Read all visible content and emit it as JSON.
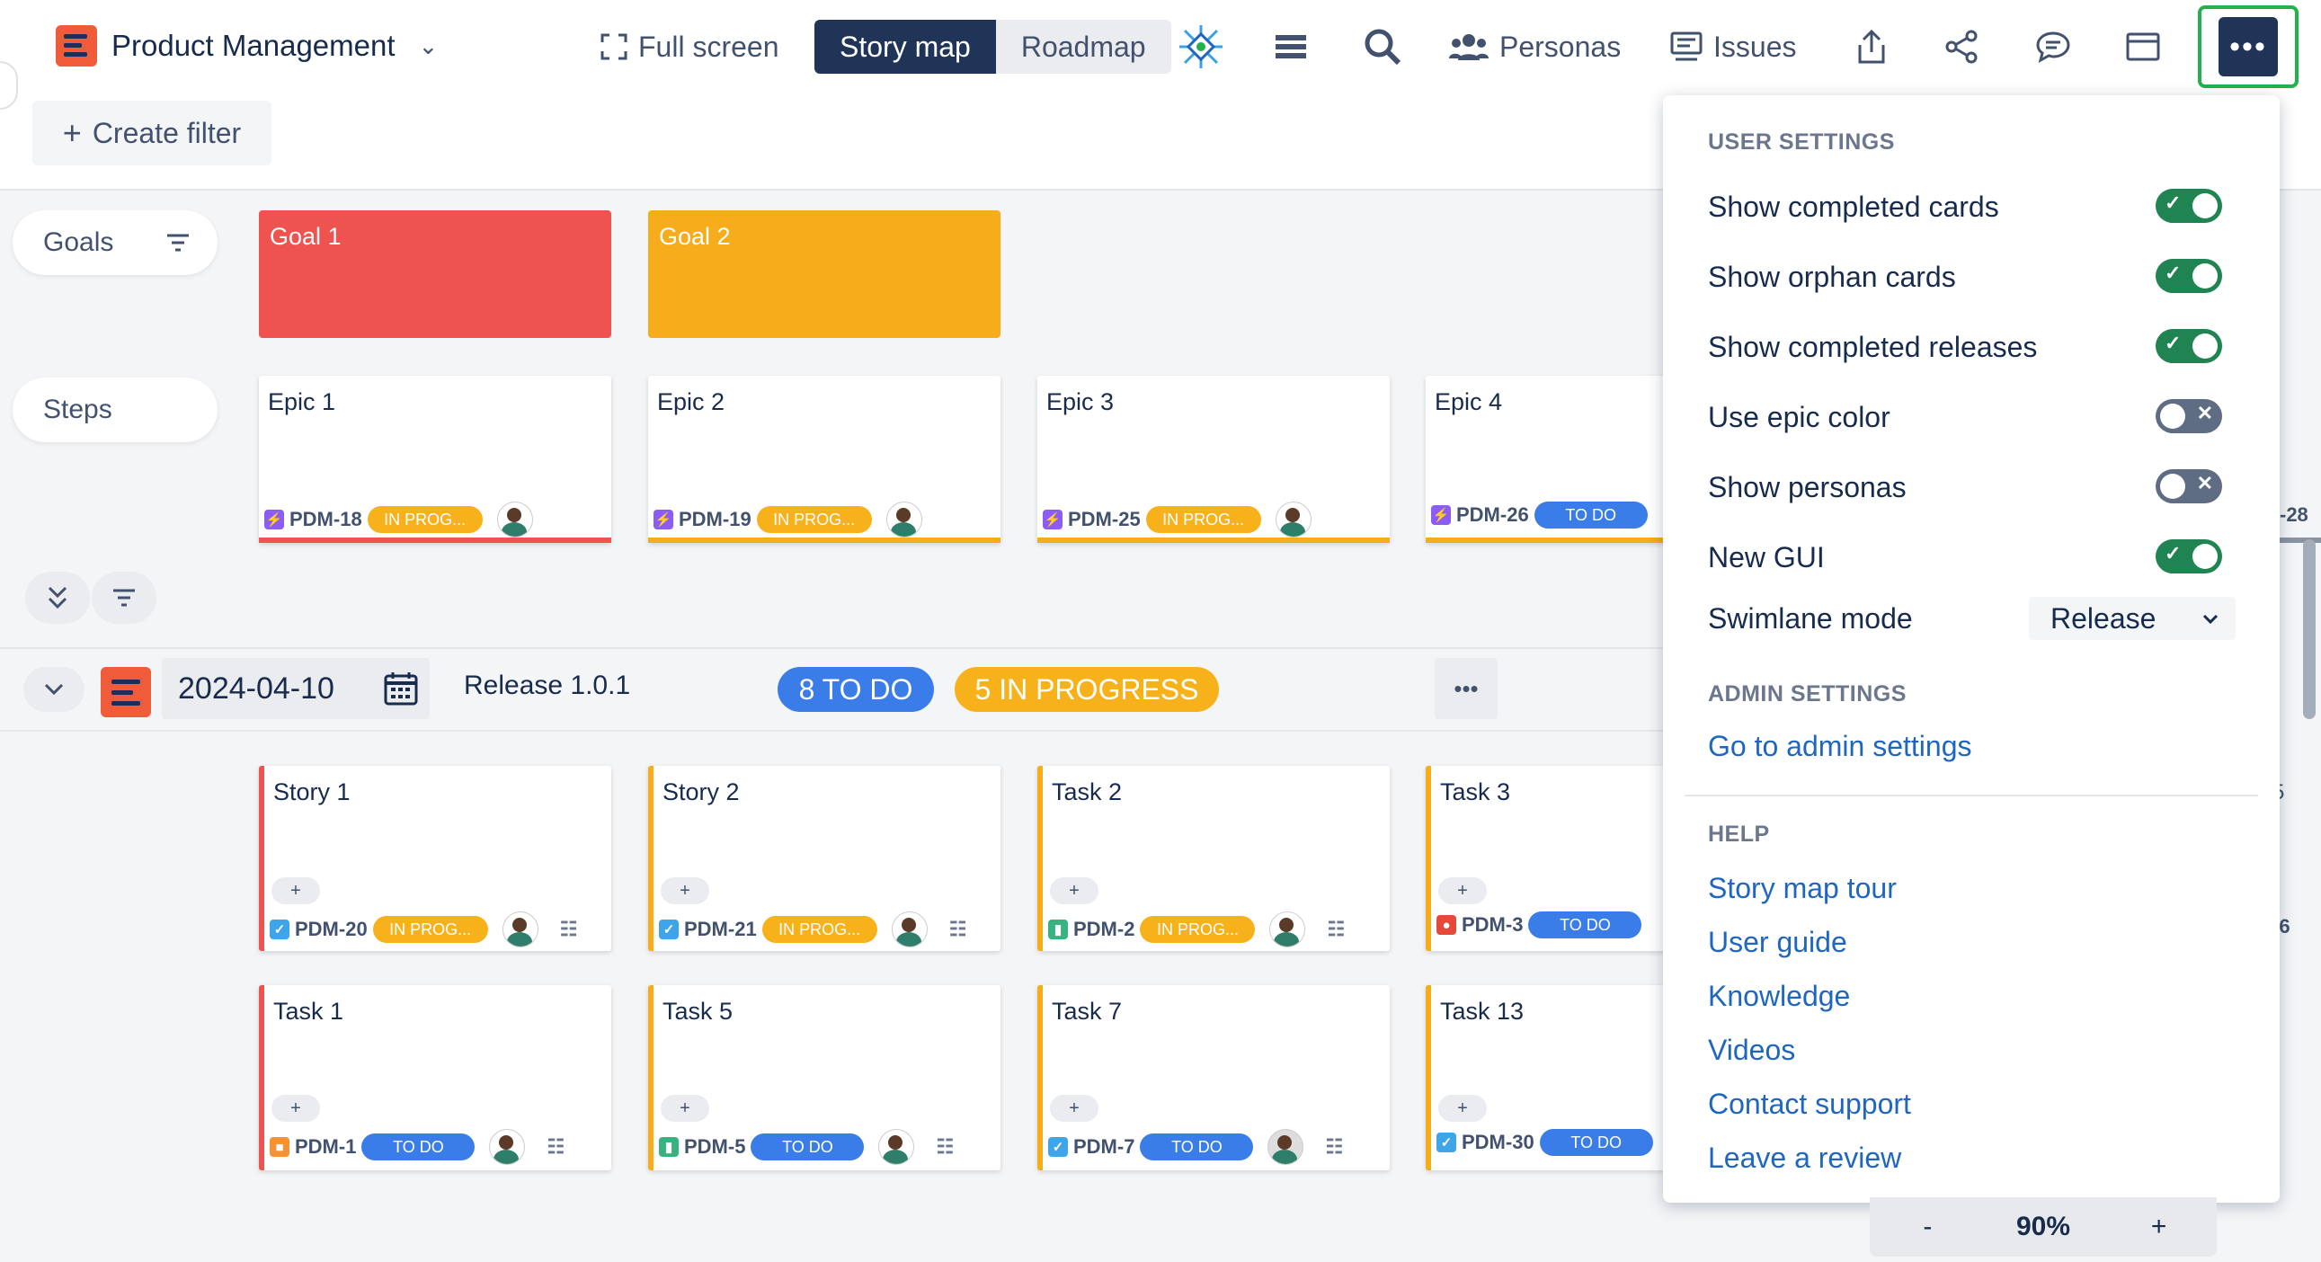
{
  "header": {
    "project_name": "Product Management",
    "fullscreen_label": "Full screen",
    "view_tabs": [
      "Story map",
      "Roadmap"
    ],
    "personas_label": "Personas",
    "issues_label": "Issues",
    "create_filter_label": "Create filter"
  },
  "rows": {
    "goals_label": "Goals",
    "steps_label": "Steps"
  },
  "goals": [
    {
      "title": "Goal 1",
      "color": "#ef5350"
    },
    {
      "title": "Goal 2",
      "color": "#f7ac1b"
    }
  ],
  "epics": [
    {
      "title": "Epic 1",
      "key": "PDM-18",
      "status": "IN PROG...",
      "bar": "#ef5350"
    },
    {
      "title": "Epic 2",
      "key": "PDM-19",
      "status": "IN PROG...",
      "bar": "#f7ac1b"
    },
    {
      "title": "Epic 3",
      "key": "PDM-25",
      "status": "IN PROG...",
      "bar": "#f7ac1b"
    },
    {
      "title": "Epic 4",
      "key": "PDM-26",
      "status": "TO DO",
      "bar": "#f7ac1b"
    }
  ],
  "offscreen_epic_key_fragment": "-28",
  "release": {
    "date": "2024-04-10",
    "name": "Release 1.0.1",
    "todo_badge": "8 TO DO",
    "progress_badge": "5 IN PROGRESS"
  },
  "story_rows": [
    [
      {
        "title": "Story 1",
        "key": "PDM-20",
        "status": "IN PROG...",
        "type": "story"
      },
      {
        "title": "Story 2",
        "key": "PDM-21",
        "status": "IN PROG...",
        "type": "story"
      },
      {
        "title": "Task 2",
        "key": "PDM-2",
        "status": "IN PROG...",
        "type": "bookmark"
      },
      {
        "title": "Task 3",
        "key": "PDM-3",
        "status": "TO DO",
        "type": "bug"
      }
    ],
    [
      {
        "title": "Task 1",
        "key": "PDM-1",
        "status": "TO DO",
        "type": "lock"
      },
      {
        "title": "Task 5",
        "key": "PDM-5",
        "status": "TO DO",
        "type": "bookmark"
      },
      {
        "title": "Task 7",
        "key": "PDM-7",
        "status": "TO DO",
        "type": "story"
      },
      {
        "title": "Task 13",
        "key": "PDM-30",
        "status": "TO DO",
        "type": "story"
      }
    ]
  ],
  "offscreen_fragments": [
    "5",
    "-6"
  ],
  "add_button_label": "+",
  "menu": {
    "user_settings_heading": "USER SETTINGS",
    "toggles": [
      {
        "label": "Show completed cards",
        "on": true
      },
      {
        "label": "Show orphan cards",
        "on": true
      },
      {
        "label": "Show completed releases",
        "on": true
      },
      {
        "label": "Use epic color",
        "on": false
      },
      {
        "label": "Show personas",
        "on": false
      },
      {
        "label": "New GUI",
        "on": true
      }
    ],
    "swimlane_label": "Swimlane mode",
    "swimlane_value": "Release",
    "admin_heading": "ADMIN SETTINGS",
    "admin_link": "Go to admin settings",
    "help_heading": "HELP",
    "help_links": [
      "Story map tour",
      "User guide",
      "Knowledge",
      "Videos",
      "Contact support",
      "Leave a review"
    ]
  },
  "zoom": {
    "minus": "-",
    "value": "90%",
    "plus": "+"
  },
  "colors": {
    "accent": "#1f3457",
    "highlight": "#22b24c",
    "todo": "#3b7de8",
    "progress": "#f6b11b"
  }
}
